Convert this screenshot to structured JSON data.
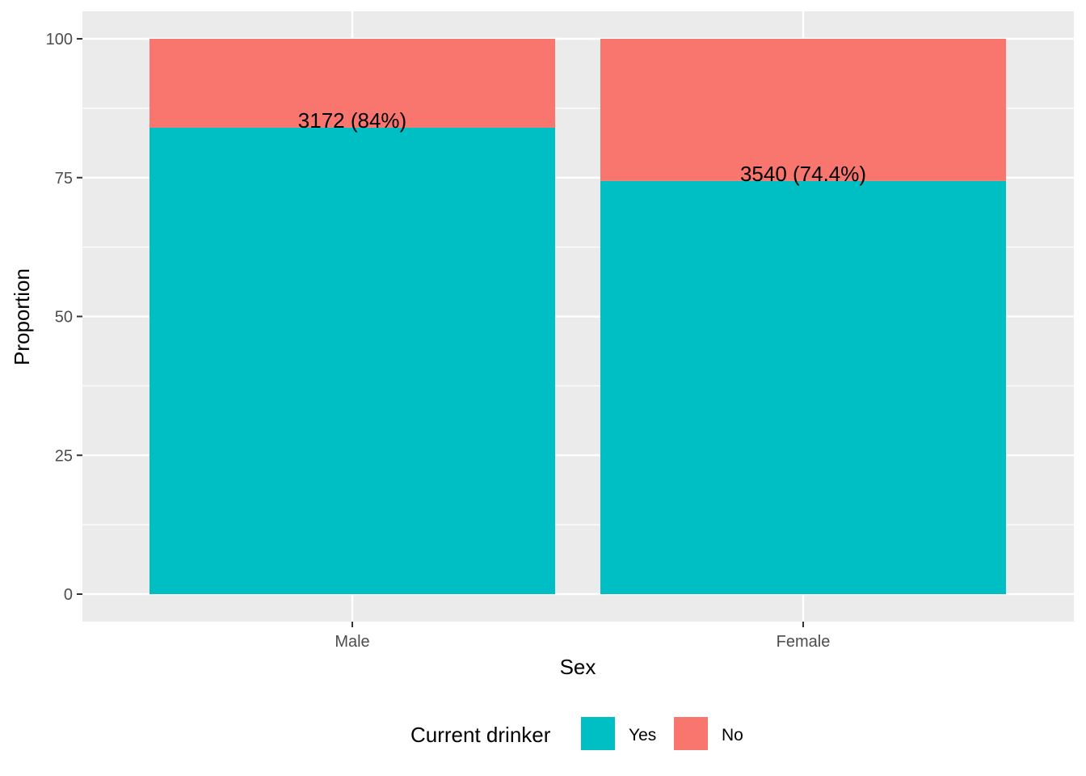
{
  "chart_data": {
    "type": "bar",
    "stacked": true,
    "categories": [
      "Male",
      "Female"
    ],
    "series": [
      {
        "name": "Yes",
        "values": [
          84.0,
          74.4
        ],
        "color": "#00BFC4"
      },
      {
        "name": "No",
        "values": [
          16.0,
          25.6
        ],
        "color": "#F8766D"
      }
    ],
    "data_labels": [
      "3172 (84%)",
      "3540 (74.4%)"
    ],
    "xlabel": "Sex",
    "ylabel": "Proportion",
    "ylim": [
      0,
      100
    ],
    "yticks": [
      0,
      25,
      50,
      75,
      100
    ],
    "ytick_labels": [
      "0",
      "25",
      "50",
      "75",
      "100"
    ],
    "grid": true,
    "panel_background": "#EBEBEB",
    "legend": {
      "title": "Current drinker",
      "position": "bottom"
    }
  }
}
